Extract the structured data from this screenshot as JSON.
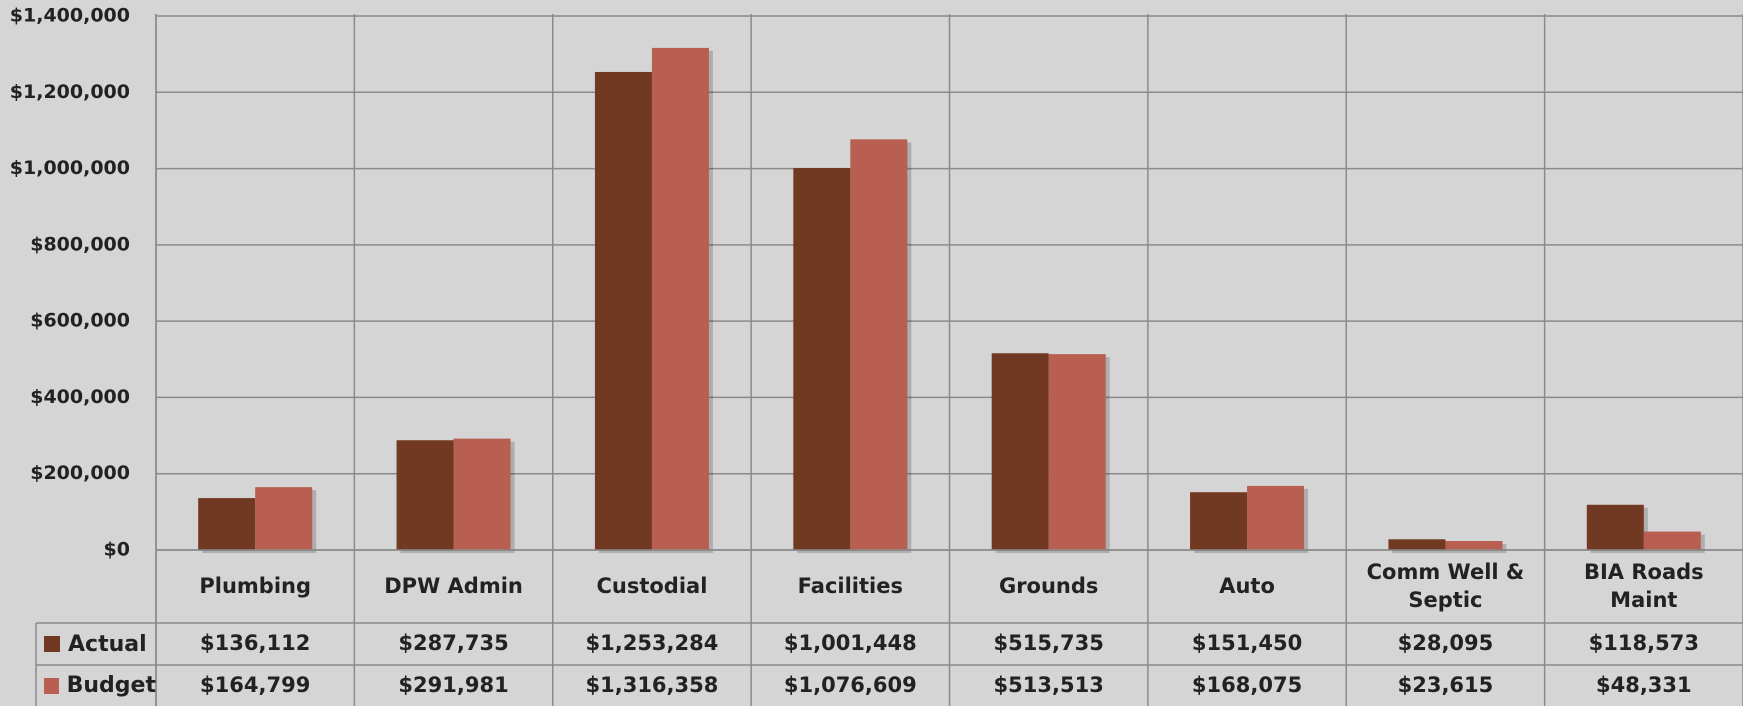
{
  "chart_data": {
    "type": "bar",
    "categories": [
      "Plumbing",
      "DPW Admin",
      "Custodial",
      "Facilities",
      "Grounds",
      "Auto",
      "Comm Well & Septic",
      "BIA Roads Maint"
    ],
    "series": [
      {
        "name": "Actual",
        "color": "#713822",
        "values": [
          136112,
          287735,
          1253284,
          1001448,
          515735,
          151450,
          28095,
          118573
        ],
        "value_labels": [
          "$136,112",
          "$287,735",
          "$1,253,284",
          "$1,001,448",
          "$515,735",
          "$151,450",
          "$28,095",
          "$118,573"
        ]
      },
      {
        "name": "Budget",
        "color": "#b85f52",
        "values": [
          164799,
          291981,
          1316358,
          1076609,
          513513,
          168075,
          23615,
          48331
        ],
        "value_labels": [
          "$164,799",
          "$291,981",
          "$1,316,358",
          "$1,076,609",
          "$513,513",
          "$168,075",
          "$23,615",
          "$48,331"
        ]
      }
    ],
    "ylim": [
      0,
      1400000
    ],
    "yticks": [
      {
        "value": 0,
        "label": "$0"
      },
      {
        "value": 200000,
        "label": "$200,000"
      },
      {
        "value": 400000,
        "label": "$400,000"
      },
      {
        "value": 600000,
        "label": "$600,000"
      },
      {
        "value": 800000,
        "label": "$800,000"
      },
      {
        "value": 1000000,
        "label": "$1,000,000"
      },
      {
        "value": 1200000,
        "label": "$1,200,000"
      },
      {
        "value": 1400000,
        "label": "$1,400,000"
      }
    ],
    "grid": true
  }
}
